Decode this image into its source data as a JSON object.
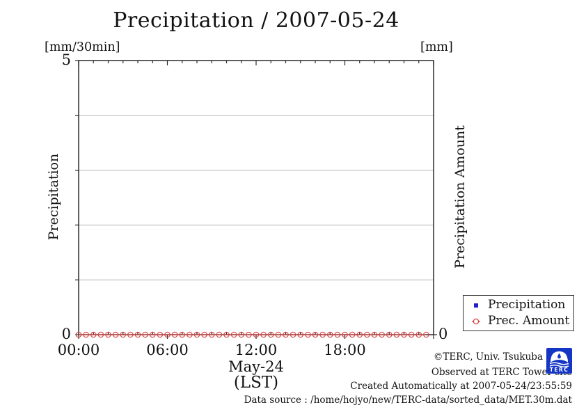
{
  "chart_data": {
    "type": "line",
    "title": "Precipitation / 2007-05-24",
    "x": [
      "00:00",
      "00:30",
      "01:00",
      "01:30",
      "02:00",
      "02:30",
      "03:00",
      "03:30",
      "04:00",
      "04:30",
      "05:00",
      "05:30",
      "06:00",
      "06:30",
      "07:00",
      "07:30",
      "08:00",
      "08:30",
      "09:00",
      "09:30",
      "10:00",
      "10:30",
      "11:00",
      "11:30",
      "12:00",
      "12:30",
      "13:00",
      "13:30",
      "14:00",
      "14:30",
      "15:00",
      "15:30",
      "16:00",
      "16:30",
      "17:00",
      "17:30",
      "18:00",
      "18:30",
      "19:00",
      "19:30",
      "20:00",
      "20:30",
      "21:00",
      "21:30",
      "22:00",
      "22:30",
      "23:00",
      "23:30"
    ],
    "series": [
      {
        "name": "Precipitation",
        "axis": "left",
        "marker": "square",
        "color": "#2020cc",
        "values": [
          0,
          0,
          0,
          0,
          0,
          0,
          0,
          0,
          0,
          0,
          0,
          0,
          0,
          0,
          0,
          0,
          0,
          0,
          0,
          0,
          0,
          0,
          0,
          0,
          0,
          0,
          0,
          0,
          0,
          0,
          0,
          0,
          0,
          0,
          0,
          0,
          0,
          0,
          0,
          0,
          0,
          0,
          0,
          0,
          0,
          0,
          0,
          0
        ]
      },
      {
        "name": "Prec. Amount",
        "axis": "right",
        "marker": "circle",
        "color": "#d24545",
        "values": [
          0,
          0,
          0,
          0,
          0,
          0,
          0,
          0,
          0,
          0,
          0,
          0,
          0,
          0,
          0,
          0,
          0,
          0,
          0,
          0,
          0,
          0,
          0,
          0,
          0,
          0,
          0,
          0,
          0,
          0,
          0,
          0,
          0,
          0,
          0,
          0,
          0,
          0,
          0,
          0,
          0,
          0,
          0,
          0,
          0,
          0,
          0,
          0
        ]
      }
    ],
    "left_axis": {
      "unit": "[mm/30min]",
      "label": "Precipitation",
      "min": 0,
      "max": 5,
      "tick_labels": [
        "5",
        "0"
      ],
      "gridline_values": [
        1,
        2,
        3,
        4
      ]
    },
    "right_axis": {
      "unit": "[mm]",
      "label": "Precipitation Amount",
      "tick_labels": [
        "0"
      ]
    },
    "x_axis": {
      "tick_labels": [
        "00:00",
        "06:00",
        "12:00",
        "18:00"
      ],
      "tick_hours": [
        0,
        6,
        12,
        18
      ],
      "date_label": "May-24",
      "tz_label": "(LST)",
      "minor_tick_hours": 1,
      "major_tick_hours": 6,
      "range_hours": [
        0,
        24
      ]
    },
    "grid": "horizontal",
    "grid_color": "#b8b8b8",
    "frame_color": "#2a2a2a",
    "legend_position": "outside-bottom-right"
  },
  "legend": {
    "items": [
      {
        "label": "Precipitation",
        "marker": "square",
        "color": "#2020cc"
      },
      {
        "label": "Prec. Amount",
        "marker": "circle-line",
        "color": "#d24545"
      }
    ]
  },
  "footer": {
    "copyright": "©TERC, Univ. Tsukuba",
    "observed": "Observed at TERC Tower site",
    "created": "Created Automatically at 2007-05-24/23:55:59",
    "source": "Data source : /home/hojyo/new/TERC-data/sorted_data/MET.30m.dat",
    "logo_text": "TERC",
    "logo_color": "#1535c4"
  }
}
